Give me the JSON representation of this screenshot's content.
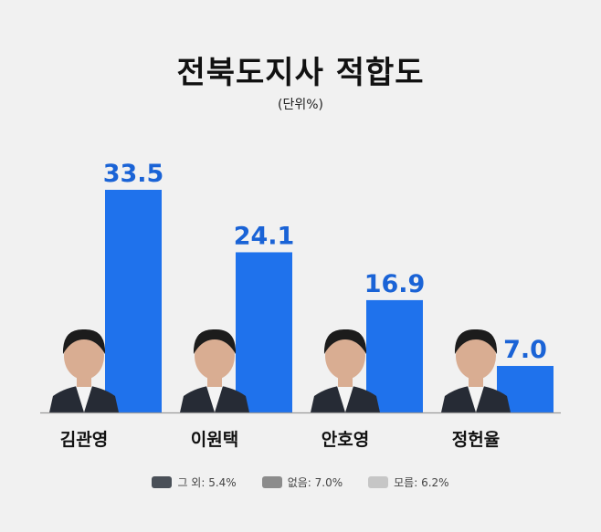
{
  "title": "전북도지사 적합도",
  "subtitle": "(단위%)",
  "colors": {
    "bar": "#1f72ec",
    "value_label": "#1a63d6",
    "baseline": "#9a9a9a",
    "suit": "#262b35",
    "skin": "#d9ad92",
    "hair": "#1c1c1c"
  },
  "chart_data": {
    "type": "bar",
    "categories": [
      "김관영",
      "이원택",
      "안호영",
      "정헌율"
    ],
    "values": [
      33.5,
      24.1,
      16.9,
      7.0
    ],
    "value_labels": [
      "33.5",
      "24.1",
      "16.9",
      "7.0"
    ],
    "title": "전북도지사 적합도",
    "ylim": [
      0,
      40
    ],
    "grid": false
  },
  "legend": [
    {
      "label": "그 외: 5.4%",
      "color": "#4a5058"
    },
    {
      "label": "없음: 7.0%",
      "color": "#8c8c8c"
    },
    {
      "label": "모름: 6.2%",
      "color": "#c6c6c6"
    }
  ],
  "icons": [
    "candidate-photo-icon"
  ]
}
